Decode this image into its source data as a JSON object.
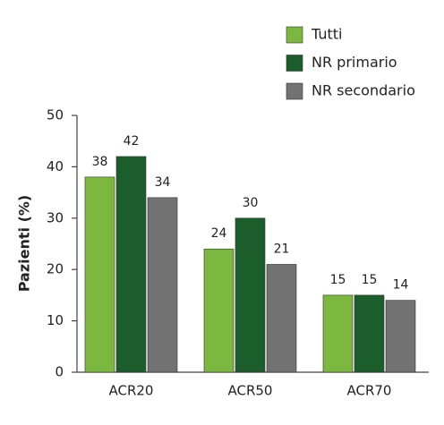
{
  "chart_data": {
    "type": "bar",
    "y_label": "Pazienti (%)",
    "categories": [
      "ACR20",
      "ACR50",
      "ACR70"
    ],
    "series": [
      {
        "name": "Tutti",
        "color": "#7cb83f",
        "values": [
          38,
          24,
          15
        ]
      },
      {
        "name": "NR primario",
        "color": "#1b5e2c",
        "values": [
          42,
          30,
          15
        ]
      },
      {
        "name": "NR secondario",
        "color": "#727272",
        "values": [
          34,
          21,
          14
        ]
      }
    ],
    "ylim": [
      0,
      50
    ],
    "yticks": [
      0,
      10,
      20,
      30,
      40,
      50
    ],
    "grid": false,
    "legend": "top-right"
  }
}
